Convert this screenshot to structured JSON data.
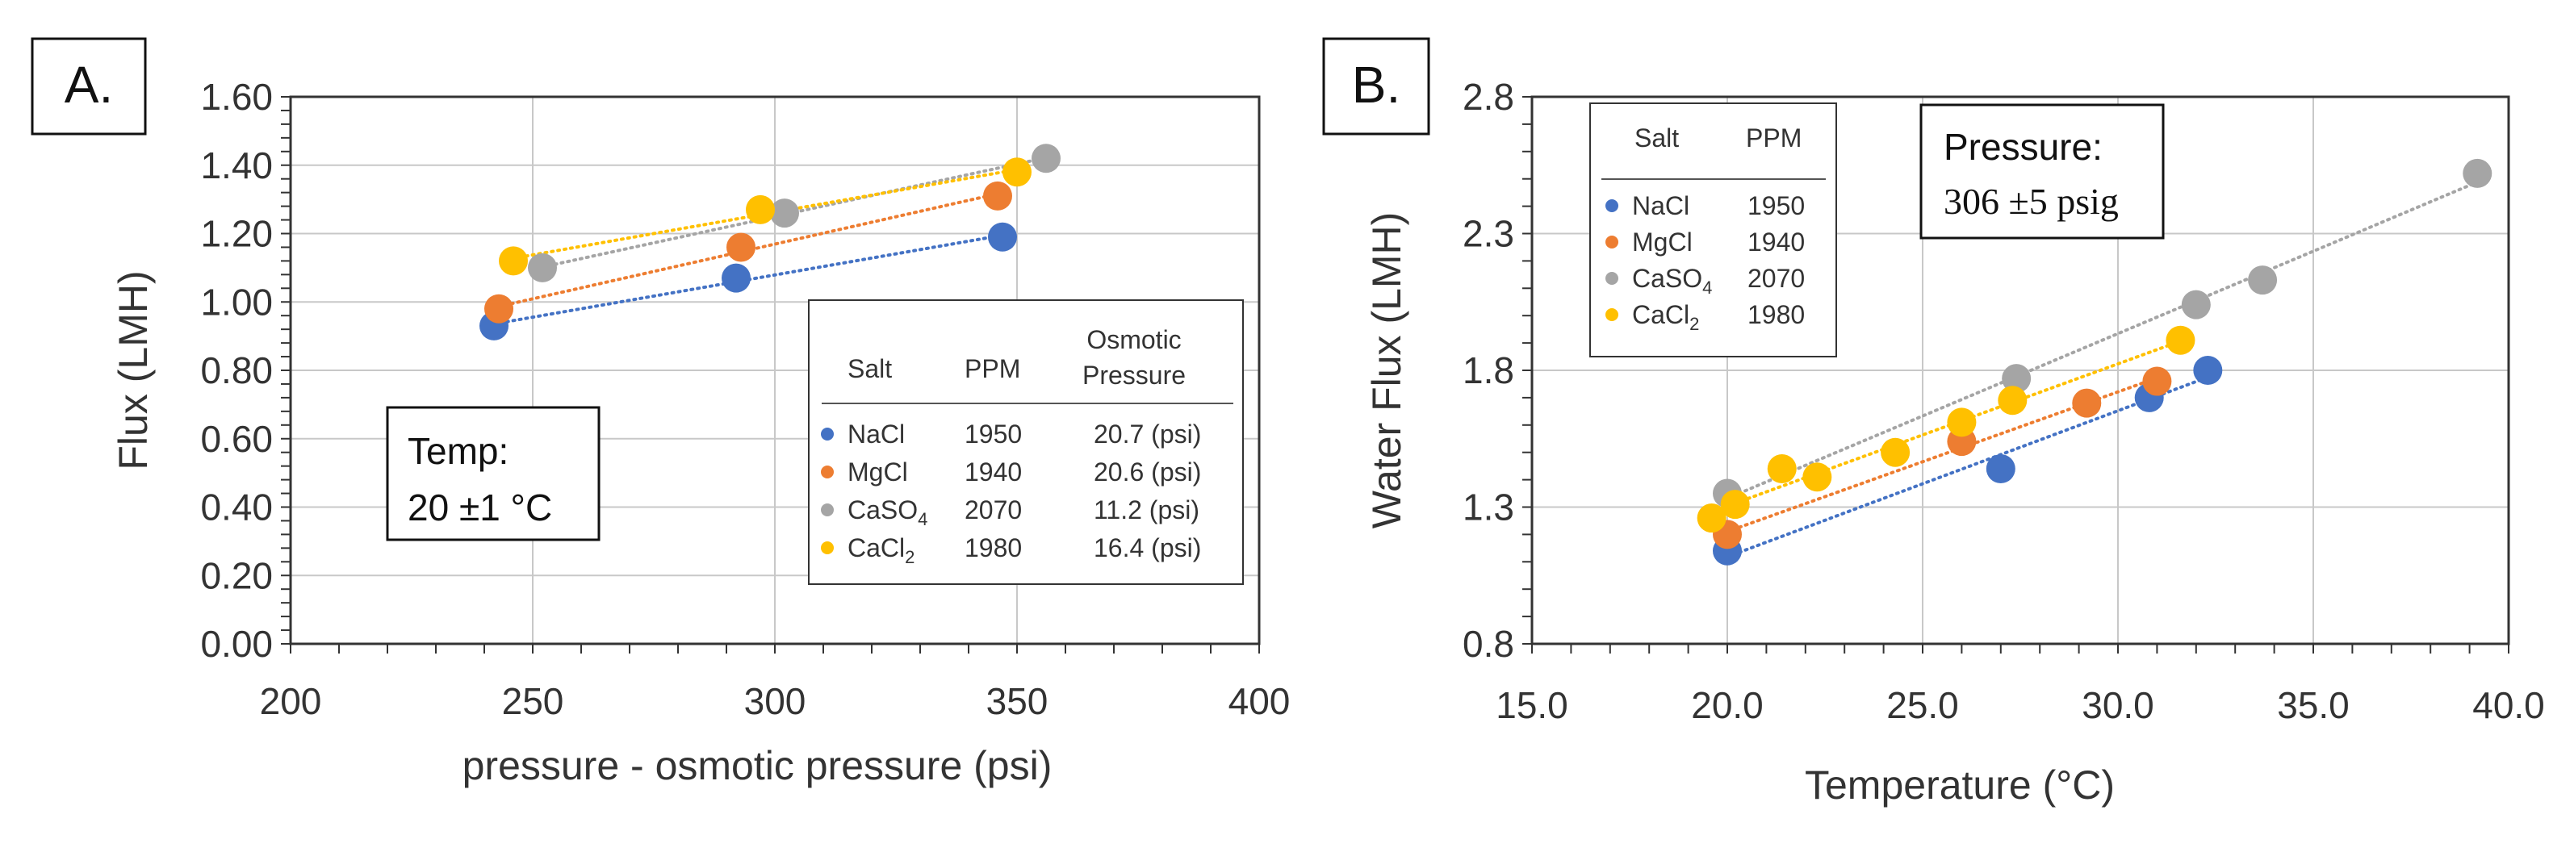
{
  "colors": {
    "NaCl": "#4472c4",
    "MgCl": "#ed7d31",
    "CaSO4": "#a5a5a5",
    "CaCl2": "#ffc000",
    "grid": "#c8c8c8",
    "frame": "#333333"
  },
  "chart_data": [
    {
      "type": "scatter",
      "panel_label": "A.",
      "xlabel": "pressure - osmotic pressure (psi)",
      "ylabel": "Flux (LMH)",
      "xlim": [
        200,
        400
      ],
      "ylim": [
        0,
        1.6
      ],
      "x_ticks": [
        "200",
        "250",
        "300",
        "350",
        "400"
      ],
      "y_ticks": [
        "0.00",
        "0.20",
        "0.40",
        "0.60",
        "0.80",
        "1.00",
        "1.20",
        "1.40",
        "1.60"
      ],
      "trendlines": "dotted linear per series",
      "annotation": {
        "line1": "Temp:",
        "line2": "20 ±1 °C"
      },
      "legend": {
        "position": "bottom-right",
        "headers": {
          "salt": "Salt",
          "ppm": "PPM",
          "osmotic_line1": "Osmotic",
          "osmotic_line2": "Pressure"
        },
        "rows": [
          {
            "series": "NaCl",
            "salt_base": "NaCl",
            "salt_sub": "",
            "ppm": "1950",
            "osmotic": "20.7 (psi)"
          },
          {
            "series": "MgCl",
            "salt_base": "MgCl",
            "salt_sub": "",
            "ppm": "1940",
            "osmotic": "20.6 (psi)"
          },
          {
            "series": "CaSO4",
            "salt_base": "CaSO",
            "salt_sub": "4",
            "ppm": "2070",
            "osmotic": "11.2 (psi)"
          },
          {
            "series": "CaCl2",
            "salt_base": "CaCl",
            "salt_sub": "2",
            "ppm": "1980",
            "osmotic": "16.4 (psi)"
          }
        ]
      },
      "series": [
        {
          "name": "NaCl",
          "x": [
            242,
            292,
            347
          ],
          "y": [
            0.93,
            1.07,
            1.19
          ]
        },
        {
          "name": "MgCl",
          "x": [
            243,
            293,
            346
          ],
          "y": [
            0.98,
            1.16,
            1.31
          ]
        },
        {
          "name": "CaSO4",
          "x": [
            252,
            302,
            356
          ],
          "y": [
            1.1,
            1.26,
            1.42
          ]
        },
        {
          "name": "CaCl2",
          "x": [
            246,
            297,
            350
          ],
          "y": [
            1.12,
            1.27,
            1.38
          ]
        }
      ]
    },
    {
      "type": "scatter",
      "panel_label": "B.",
      "xlabel": "Temperature (°C)",
      "ylabel": "Water Flux (LMH)",
      "xlim": [
        15,
        40
      ],
      "ylim": [
        0.8,
        2.8
      ],
      "x_ticks": [
        "15.0",
        "20.0",
        "25.0",
        "30.0",
        "35.0",
        "40.0"
      ],
      "y_ticks": [
        "0.8",
        "1.3",
        "1.8",
        "2.3",
        "2.8"
      ],
      "trendlines": "dotted linear per series",
      "annotation": {
        "line1": "Pressure:",
        "line2": "306 ±5 psig"
      },
      "legend": {
        "position": "top-left",
        "headers": {
          "salt": "Salt",
          "ppm": "PPM"
        },
        "rows": [
          {
            "series": "NaCl",
            "salt_base": "NaCl",
            "salt_sub": "",
            "ppm": "1950"
          },
          {
            "series": "MgCl",
            "salt_base": "MgCl",
            "salt_sub": "",
            "ppm": "1940"
          },
          {
            "series": "CaSO4",
            "salt_base": "CaSO",
            "salt_sub": "4",
            "ppm": "2070"
          },
          {
            "series": "CaCl2",
            "salt_base": "CaCl",
            "salt_sub": "2",
            "ppm": "1980"
          }
        ]
      },
      "series": [
        {
          "name": "NaCl",
          "x": [
            20.0,
            27.0,
            30.8,
            32.3
          ],
          "y": [
            1.14,
            1.44,
            1.7,
            1.8
          ]
        },
        {
          "name": "MgCl",
          "x": [
            20.0,
            26.0,
            29.2,
            31.0
          ],
          "y": [
            1.2,
            1.54,
            1.68,
            1.76
          ]
        },
        {
          "name": "CaSO4",
          "x": [
            20.0,
            27.4,
            32.0,
            33.7,
            39.2
          ],
          "y": [
            1.35,
            1.77,
            2.04,
            2.13,
            2.52
          ]
        },
        {
          "name": "CaCl2",
          "x": [
            19.6,
            20.2,
            21.4,
            22.3,
            24.3,
            26.0,
            27.3,
            31.6
          ],
          "y": [
            1.26,
            1.31,
            1.44,
            1.41,
            1.5,
            1.61,
            1.69,
            1.91
          ]
        }
      ]
    }
  ]
}
